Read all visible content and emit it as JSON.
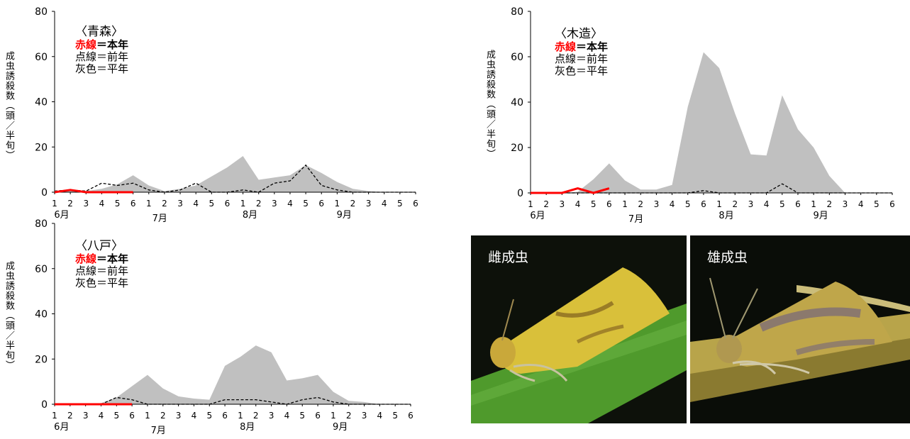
{
  "ylabel": "成虫誘殺数（頭／半旬）",
  "legend": {
    "red_word": "赤線",
    "red_rest": "＝本年",
    "dotted": "点線＝前年",
    "gray": "灰色＝平年"
  },
  "photos": [
    {
      "caption": "雌成虫",
      "colors": {
        "bg": "#0d110a",
        "leaf": "#4f9a2c",
        "moth": "#d9c03a"
      }
    },
    {
      "caption": "雄成虫",
      "colors": {
        "bg": "#0a0d08",
        "leaf": "#b8a44a",
        "moth": "#bfa64a"
      }
    }
  ],
  "chart_data": [
    {
      "type": "area",
      "title": "〈青森〉",
      "ylim": [
        0,
        80
      ],
      "yticks": [
        0,
        20,
        40,
        60,
        80
      ],
      "x_tick_labels": [
        "1",
        "2",
        "3",
        "4",
        "5",
        "6",
        "1",
        "2",
        "3",
        "4",
        "5",
        "6",
        "1",
        "2",
        "3",
        "4",
        "5",
        "6",
        "1",
        "2",
        "3",
        "4",
        "5",
        "6"
      ],
      "month_labels": [
        "6月",
        "7月",
        "8月",
        "9月"
      ],
      "series": [
        {
          "name": "平年",
          "style": "gray-area",
          "color": "#c0c0c0",
          "values": [
            0.5,
            0.8,
            0.5,
            1.5,
            3.5,
            7.5,
            3,
            0.5,
            1.5,
            3,
            7,
            11,
            16,
            5.5,
            6.5,
            7.5,
            12,
            8.5,
            4.5,
            1.5,
            0.5,
            0,
            0,
            0
          ]
        },
        {
          "name": "前年",
          "style": "dashed",
          "color": "#000000",
          "values": [
            0.5,
            1,
            0.5,
            4,
            3,
            4,
            1,
            0,
            1,
            4,
            0,
            0,
            1,
            0,
            4,
            5,
            12,
            3,
            1,
            0,
            0,
            0,
            0,
            0
          ]
        },
        {
          "name": "本年",
          "style": "red-line",
          "color": "#ff0000",
          "values": [
            0,
            1,
            0,
            0,
            0,
            0
          ]
        }
      ]
    },
    {
      "type": "area",
      "title": "〈木造〉",
      "ylim": [
        0,
        80
      ],
      "yticks": [
        0,
        20,
        40,
        60,
        80
      ],
      "x_tick_labels": [
        "1",
        "2",
        "3",
        "4",
        "5",
        "6",
        "1",
        "2",
        "3",
        "4",
        "5",
        "6",
        "1",
        "2",
        "3",
        "4",
        "5",
        "6",
        "1",
        "2",
        "3",
        "4",
        "5",
        "6"
      ],
      "month_labels": [
        "6月",
        "7月",
        "8月",
        "9月"
      ],
      "series": [
        {
          "name": "平年",
          "style": "gray-area",
          "color": "#c0c0c0",
          "values": [
            0,
            0,
            0,
            0.5,
            6,
            13,
            5.5,
            1.5,
            1.5,
            3.5,
            38,
            62,
            55,
            35,
            17,
            16.5,
            43,
            28,
            20,
            7.5,
            0,
            0,
            0,
            0
          ]
        },
        {
          "name": "前年",
          "style": "dashed",
          "color": "#000000",
          "values": [
            0,
            0,
            0,
            0,
            0,
            0,
            0,
            0,
            0,
            0,
            0,
            1,
            0,
            0,
            0,
            0,
            4,
            0,
            0,
            0,
            0,
            0,
            0,
            0
          ]
        },
        {
          "name": "本年",
          "style": "red-line",
          "color": "#ff0000",
          "values": [
            0,
            0,
            0,
            2,
            0,
            2
          ]
        }
      ]
    },
    {
      "type": "area",
      "title": "〈八戸〉",
      "ylim": [
        0,
        80
      ],
      "yticks": [
        0,
        20,
        40,
        60,
        80
      ],
      "x_tick_labels": [
        "1",
        "2",
        "3",
        "4",
        "5",
        "6",
        "1",
        "2",
        "3",
        "4",
        "5",
        "6",
        "1",
        "2",
        "3",
        "4",
        "5",
        "6",
        "1",
        "2",
        "3",
        "4",
        "5",
        "6"
      ],
      "month_labels": [
        "6月",
        "7月",
        "8月",
        "9月"
      ],
      "series": [
        {
          "name": "平年",
          "style": "gray-area",
          "color": "#c0c0c0",
          "values": [
            0,
            0,
            0,
            0.5,
            3,
            8,
            13,
            7,
            3.5,
            2.5,
            2,
            17,
            21,
            26,
            23,
            10.5,
            11.5,
            13,
            5.5,
            1.5,
            1,
            0,
            0,
            0
          ]
        },
        {
          "name": "前年",
          "style": "dashed",
          "color": "#000000",
          "values": [
            0,
            0,
            0,
            0,
            3,
            2,
            0,
            0,
            0,
            0,
            0,
            2,
            2,
            2,
            1,
            0,
            2,
            3,
            1,
            0,
            0,
            0,
            0,
            0
          ]
        },
        {
          "name": "本年",
          "style": "red-line",
          "color": "#ff0000",
          "values": [
            0,
            0,
            0,
            0,
            0,
            0
          ]
        }
      ]
    }
  ]
}
